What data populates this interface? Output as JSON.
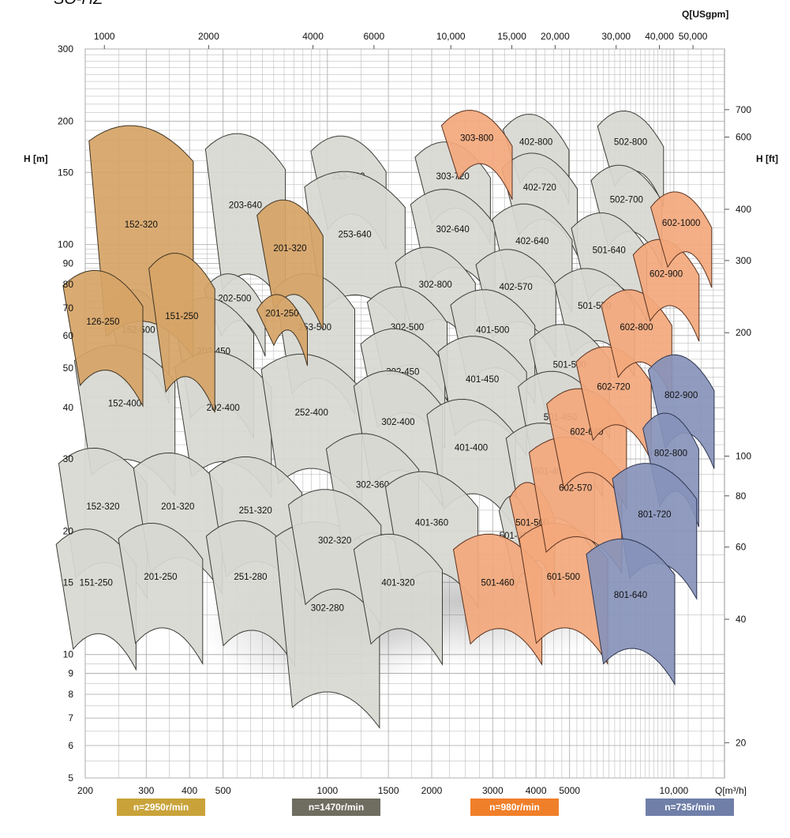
{
  "chart_data": {
    "type": "pump-performance-coverage",
    "title": "SO-HZ",
    "x_axis": {
      "label": "Q[m³/h]",
      "scale": "log",
      "range": [
        200,
        14000
      ],
      "ticks": [
        {
          "value": 200,
          "label": "200"
        },
        {
          "value": 300,
          "label": "300"
        },
        {
          "value": 400,
          "label": "400"
        },
        {
          "value": 500,
          "label": "500"
        },
        {
          "value": 1000,
          "label": "1000"
        },
        {
          "value": 1500,
          "label": "1500"
        },
        {
          "value": 2000,
          "label": "2000"
        },
        {
          "value": 3000,
          "label": "3000"
        },
        {
          "value": 4000,
          "label": "4000"
        },
        {
          "value": 5000,
          "label": "5000"
        },
        {
          "value": 10000,
          "label": "10,000"
        }
      ]
    },
    "x2_axis": {
      "label": "Q[USgpm]",
      "ticks": [
        {
          "value": 1000,
          "label": "1000"
        },
        {
          "value": 2000,
          "label": "2000"
        },
        {
          "value": 4000,
          "label": "4000"
        },
        {
          "value": 6000,
          "label": "6000"
        },
        {
          "value": 10000,
          "label": "10,000"
        },
        {
          "value": 15000,
          "label": "15,000"
        },
        {
          "value": 20000,
          "label": "20,000"
        },
        {
          "value": 30000,
          "label": "30,000"
        },
        {
          "value": 40000,
          "label": "40,000"
        },
        {
          "value": 50000,
          "label": "50,000"
        }
      ]
    },
    "y_axis": {
      "label": "H [m]",
      "scale": "log",
      "range": [
        5,
        300
      ],
      "ticks": [
        5,
        6,
        7,
        8,
        9,
        10,
        15,
        20,
        30,
        40,
        50,
        60,
        70,
        80,
        90,
        100,
        150,
        200,
        300
      ]
    },
    "y2_axis": {
      "label": "H [ft]",
      "ticks": [
        20,
        40,
        60,
        80,
        100,
        200,
        300,
        400,
        600,
        700
      ]
    },
    "grid": true,
    "colors": {
      "n2950": "#c9a33a",
      "n1470": "#6f6c60",
      "n980": "#f07f2a",
      "n735": "#6f7fa8",
      "fill2950": "#d6a466",
      "fill1470": "#d8d8d2",
      "fill980": "#f3a87c",
      "fill735": "#8793ba",
      "grid": "#b0b0b0"
    },
    "legend": [
      {
        "label": "n=2950r/min",
        "color": "#c9a33a"
      },
      {
        "label": "n=1470r/min",
        "color": "#6f6c60"
      },
      {
        "label": "n=980r/min",
        "color": "#f07f2a"
      },
      {
        "label": "n=735r/min",
        "color": "#6f7fa8"
      }
    ],
    "regions": [
      {
        "label": "152-320",
        "speed": 2950,
        "q": 290,
        "h": 112,
        "w": 2.0,
        "hh": 3.0
      },
      {
        "label": "126-250",
        "speed": 2950,
        "q": 225,
        "h": 65,
        "w": 1.7,
        "hh": 1.75
      },
      {
        "label": "151-250",
        "speed": 2950,
        "q": 380,
        "h": 67,
        "w": 1.55,
        "hh": 2.0
      },
      {
        "label": "201-320",
        "speed": 2950,
        "q": 780,
        "h": 98,
        "w": 1.55,
        "hh": 1.7
      },
      {
        "label": "201-250",
        "speed": 2950,
        "q": 740,
        "h": 68,
        "w": 1.4,
        "hh": 1.22
      },
      {
        "label": "203-640",
        "speed": 1470,
        "q": 580,
        "h": 125,
        "w": 1.7,
        "hh": 2.2
      },
      {
        "label": "202-500",
        "speed": 1470,
        "q": 540,
        "h": 74,
        "w": 1.5,
        "hh": 1.3
      },
      {
        "label": "152-500",
        "speed": 1470,
        "q": 285,
        "h": 62,
        "w": 1.5,
        "hh": 1.55
      },
      {
        "label": "202-450",
        "speed": 1470,
        "q": 470,
        "h": 55,
        "w": 1.7,
        "hh": 1.8
      },
      {
        "label": "152-400",
        "speed": 1470,
        "q": 260,
        "h": 41,
        "w": 1.95,
        "hh": 1.9
      },
      {
        "label": "202-400",
        "speed": 1470,
        "q": 500,
        "h": 40,
        "w": 1.9,
        "hh": 1.85
      },
      {
        "label": "152-320",
        "speed": 1470,
        "q": 225,
        "h": 23,
        "w": 1.8,
        "hh": 1.9
      },
      {
        "label": "201-320",
        "speed": 1470,
        "q": 370,
        "h": 23,
        "w": 1.8,
        "hh": 1.8
      },
      {
        "label": "151-250",
        "speed": 1470,
        "q": 215,
        "h": 15,
        "w": 1.7,
        "hh": 1.8
      },
      {
        "label": "201-250",
        "speed": 1470,
        "q": 330,
        "h": 15.5,
        "w": 1.75,
        "hh": 1.8
      },
      {
        "label": "253-720",
        "speed": 1470,
        "q": 1150,
        "h": 147,
        "w": 1.65,
        "hh": 1.55
      },
      {
        "label": "253-640",
        "speed": 1470,
        "q": 1200,
        "h": 106,
        "w": 1.95,
        "hh": 2.0
      },
      {
        "label": "253-500",
        "speed": 1470,
        "q": 920,
        "h": 63,
        "w": 1.7,
        "hh": 1.8
      },
      {
        "label": "252-400",
        "speed": 1470,
        "q": 900,
        "h": 39,
        "w": 1.95,
        "hh": 1.9
      },
      {
        "label": "251-320",
        "speed": 1470,
        "q": 620,
        "h": 22.5,
        "w": 1.85,
        "hh": 1.8
      },
      {
        "label": "251-280",
        "speed": 1470,
        "q": 600,
        "h": 15.5,
        "w": 1.8,
        "hh": 1.85
      },
      {
        "label": "302-280",
        "speed": 1470,
        "q": 1000,
        "h": 13,
        "w": 2.0,
        "hh": 2.6
      },
      {
        "label": "303-720",
        "speed": 1470,
        "q": 2300,
        "h": 147,
        "w": 1.65,
        "hh": 1.45
      },
      {
        "label": "302-640",
        "speed": 1470,
        "q": 2300,
        "h": 109,
        "w": 1.75,
        "hh": 1.55
      },
      {
        "label": "302-800",
        "speed": 1470,
        "q": 2050,
        "h": 80,
        "w": 1.7,
        "hh": 1.5
      },
      {
        "label": "302-500",
        "speed": 1470,
        "q": 1700,
        "h": 63,
        "w": 1.7,
        "hh": 1.55
      },
      {
        "label": "302-450",
        "speed": 1470,
        "q": 1650,
        "h": 49,
        "w": 1.75,
        "hh": 1.6
      },
      {
        "label": "302-400",
        "speed": 1470,
        "q": 1600,
        "h": 37,
        "w": 1.8,
        "hh": 1.75
      },
      {
        "label": "302-360",
        "speed": 1470,
        "q": 1350,
        "h": 26,
        "w": 1.85,
        "hh": 1.75
      },
      {
        "label": "302-320",
        "speed": 1470,
        "q": 1050,
        "h": 19,
        "w": 1.85,
        "hh": 1.75
      },
      {
        "label": "402-800",
        "speed": 1470,
        "q": 4000,
        "h": 178,
        "w": 1.55,
        "hh": 1.35
      },
      {
        "label": "402-720",
        "speed": 1470,
        "q": 4100,
        "h": 138,
        "w": 1.65,
        "hh": 1.45
      },
      {
        "label": "402-640",
        "speed": 1470,
        "q": 3900,
        "h": 102,
        "w": 1.7,
        "hh": 1.5
      },
      {
        "label": "402-570",
        "speed": 1470,
        "q": 3500,
        "h": 79,
        "w": 1.7,
        "hh": 1.5
      },
      {
        "label": "401-500",
        "speed": 1470,
        "q": 3000,
        "h": 62,
        "w": 1.75,
        "hh": 1.55
      },
      {
        "label": "401-450",
        "speed": 1470,
        "q": 2800,
        "h": 47,
        "w": 1.8,
        "hh": 1.6
      },
      {
        "label": "401-400",
        "speed": 1470,
        "q": 2600,
        "h": 32,
        "w": 1.8,
        "hh": 1.7
      },
      {
        "label": "401-360",
        "speed": 1470,
        "q": 2000,
        "h": 21,
        "w": 1.85,
        "hh": 1.75
      },
      {
        "label": "401-320",
        "speed": 1470,
        "q": 1600,
        "h": 15,
        "w": 1.8,
        "hh": 1.7
      },
      {
        "label": "502-800",
        "speed": 1470,
        "q": 7500,
        "h": 178,
        "w": 1.55,
        "hh": 1.4
      },
      {
        "label": "502-700",
        "speed": 1470,
        "q": 7300,
        "h": 129,
        "w": 1.6,
        "hh": 1.45
      },
      {
        "label": "501-640",
        "speed": 1470,
        "q": 6500,
        "h": 97,
        "w": 1.65,
        "hh": 1.5
      },
      {
        "label": "501-570",
        "speed": 1470,
        "q": 5900,
        "h": 71,
        "w": 1.7,
        "hh": 1.5
      },
      {
        "label": "501-500",
        "speed": 1470,
        "q": 5000,
        "h": 51,
        "w": 1.7,
        "hh": 1.55
      },
      {
        "label": "501-450",
        "speed": 1470,
        "q": 4700,
        "h": 38,
        "w": 1.75,
        "hh": 1.65
      },
      {
        "label": "501-400",
        "speed": 1470,
        "q": 4400,
        "h": 28,
        "w": 1.8,
        "hh": 1.7
      },
      {
        "label": "501-360",
        "speed": 1470,
        "q": 3500,
        "h": 19.5,
        "w": 1.25,
        "hh": 1.55
      },
      {
        "label": "303-800",
        "speed": 980,
        "q": 2700,
        "h": 182,
        "w": 1.6,
        "hh": 1.35
      },
      {
        "label": "501-500",
        "speed": 980,
        "q": 3900,
        "h": 21,
        "w": 1.35,
        "hh": 1.55
      },
      {
        "label": "501-460",
        "speed": 980,
        "q": 3100,
        "h": 15,
        "w": 1.8,
        "hh": 1.7
      },
      {
        "label": "601-500",
        "speed": 980,
        "q": 4800,
        "h": 15.5,
        "w": 1.8,
        "hh": 1.8
      },
      {
        "label": "602-570",
        "speed": 980,
        "q": 5200,
        "h": 25.5,
        "w": 1.85,
        "hh": 1.75
      },
      {
        "label": "602-640",
        "speed": 980,
        "q": 5600,
        "h": 35,
        "w": 1.7,
        "hh": 1.6
      },
      {
        "label": "602-720",
        "speed": 980,
        "q": 6700,
        "h": 45,
        "w": 1.65,
        "hh": 1.55
      },
      {
        "label": "602-800",
        "speed": 980,
        "q": 7800,
        "h": 63,
        "w": 1.6,
        "hh": 1.5
      },
      {
        "label": "602-900",
        "speed": 980,
        "q": 9500,
        "h": 85,
        "w": 1.55,
        "hh": 1.45
      },
      {
        "label": "602-1000",
        "speed": 980,
        "q": 10500,
        "h": 113,
        "w": 1.5,
        "hh": 1.4
      },
      {
        "label": "802-900",
        "speed": 735,
        "q": 10500,
        "h": 43,
        "w": 1.55,
        "hh": 1.55
      },
      {
        "label": "802-800",
        "speed": 735,
        "q": 9800,
        "h": 31,
        "w": 1.45,
        "hh": 1.55
      },
      {
        "label": "801-720",
        "speed": 735,
        "q": 8800,
        "h": 22,
        "w": 1.75,
        "hh": 1.75
      },
      {
        "label": "801-640",
        "speed": 735,
        "q": 7500,
        "h": 14,
        "w": 1.8,
        "hh": 1.85
      }
    ]
  }
}
